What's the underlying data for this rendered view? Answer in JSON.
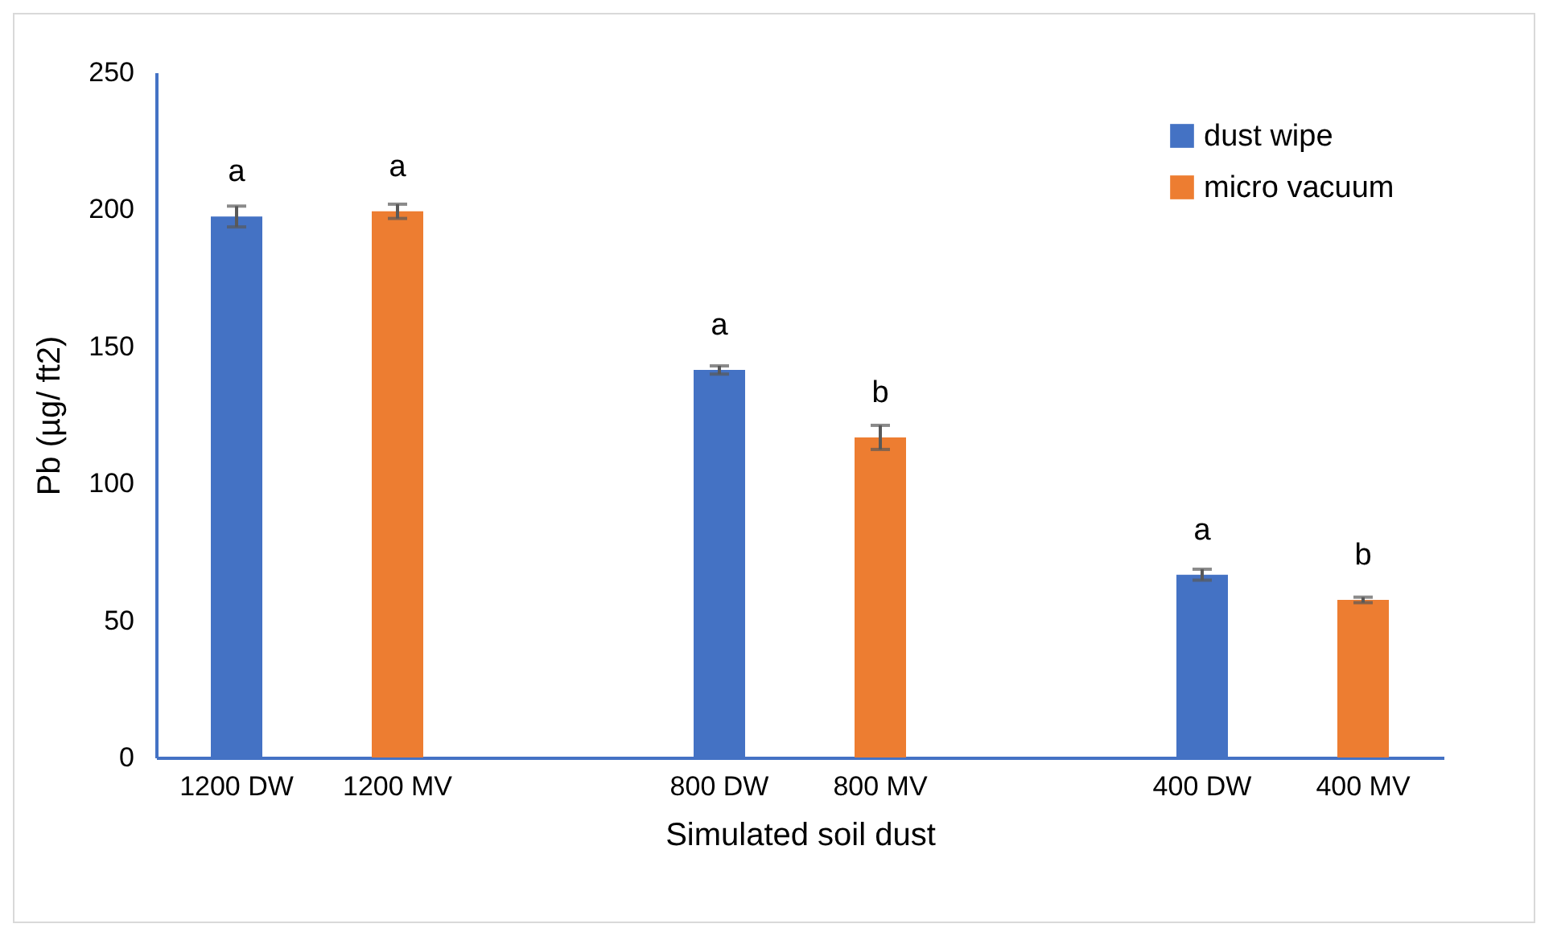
{
  "chart_data": {
    "type": "bar",
    "xlabel": "Simulated soil dust",
    "ylabel": "Pb (µg/ ft2)",
    "categories": [
      "1200 DW",
      "1200 MV",
      null,
      "800 DW",
      "800 MV",
      null,
      "400 DW",
      "400 MV"
    ],
    "series": [
      {
        "name": "dust wipe",
        "color": "#4472c4",
        "values": [
          197.4,
          null,
          null,
          141.4,
          null,
          null,
          66.7,
          null
        ],
        "errors": [
          3.8,
          null,
          null,
          1.5,
          null,
          null,
          2,
          null
        ]
      },
      {
        "name": "micro vacuum",
        "color": "#ed7d31",
        "values": [
          null,
          199.3,
          null,
          null,
          116.8,
          null,
          null,
          57.5
        ],
        "errors": [
          null,
          2.6,
          null,
          null,
          4.4,
          null,
          null,
          1
        ]
      }
    ],
    "ylim": [
      0,
      250
    ],
    "yticks": [
      0,
      50,
      100,
      150,
      200,
      250
    ],
    "grid": false,
    "legend": "top right",
    "annotations": [
      {
        "text": "a",
        "x": "1200 DW",
        "y": 197.4
      },
      {
        "text": "a",
        "x": "1200 MV",
        "y": 199.3
      },
      {
        "text": "a",
        "x": "800 DW",
        "y": 141.4
      },
      {
        "text": "b",
        "x": "800 MV",
        "y": 116.8
      },
      {
        "text": "a",
        "x": "400 DW",
        "y": 66.7
      },
      {
        "text": "b",
        "x": "400 MV",
        "y": 57.5
      }
    ]
  }
}
